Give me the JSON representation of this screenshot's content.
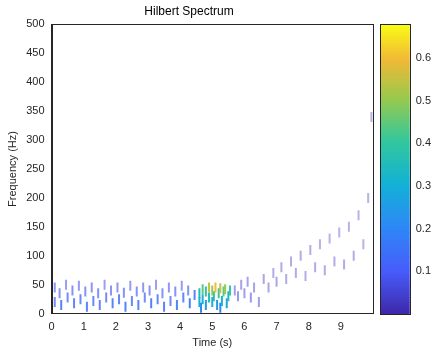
{
  "chart_data": {
    "type": "scatter",
    "title": "Hilbert Spectrum",
    "x_label": "Time (s)",
    "y_label": "Frequency (Hz)",
    "xlim": [
      0,
      10
    ],
    "xticks": [
      0,
      1,
      2,
      3,
      4,
      5,
      6,
      7,
      8,
      9
    ],
    "ylim": [
      0,
      500
    ],
    "yticks": [
      0,
      50,
      100,
      150,
      200,
      250,
      300,
      350,
      400,
      450,
      500
    ],
    "grid": false,
    "x": [
      0.1,
      0.1,
      0.25,
      0.3,
      0.45,
      0.5,
      0.65,
      0.7,
      0.85,
      0.9,
      1.05,
      1.1,
      1.25,
      1.3,
      1.45,
      1.5,
      1.65,
      1.7,
      1.85,
      1.9,
      2.05,
      2.1,
      2.25,
      2.3,
      2.45,
      2.5,
      2.65,
      2.7,
      2.85,
      2.9,
      3.05,
      3.1,
      3.25,
      3.3,
      3.45,
      3.5,
      3.65,
      3.7,
      3.85,
      3.9,
      4.05,
      4.1,
      4.25,
      4.3,
      4.45,
      5.7,
      5.8,
      5.9,
      6.0,
      6.1,
      6.2,
      6.3,
      6.45,
      6.6,
      6.75,
      6.9,
      7.0,
      7.15,
      7.3,
      7.45,
      7.6,
      7.75,
      7.9,
      8.05,
      8.2,
      8.35,
      8.5,
      8.65,
      8.8,
      8.95,
      9.1,
      9.25,
      9.4,
      9.55,
      9.7,
      9.85,
      9.95,
      4.65,
      5.25,
      4.8,
      5.15,
      5.45,
      4.6,
      4.7,
      5.0,
      5.3,
      4.6,
      4.9,
      5.05,
      5.5,
      4.8,
      5.2,
      5.35,
      5.55,
      4.7,
      5.0,
      5.4,
      4.9,
      5.25,
      5.1
    ],
    "y": [
      45,
      20,
      35,
      15,
      50,
      28,
      40,
      18,
      48,
      25,
      38,
      12,
      45,
      22,
      35,
      15,
      50,
      28,
      40,
      18,
      45,
      25,
      36,
      12,
      48,
      22,
      38,
      15,
      45,
      28,
      40,
      18,
      50,
      25,
      35,
      12,
      45,
      22,
      38,
      15,
      48,
      28,
      40,
      18,
      32,
      40,
      30,
      50,
      35,
      55,
      28,
      45,
      20,
      60,
      45,
      70,
      55,
      80,
      60,
      90,
      70,
      100,
      65,
      110,
      80,
      120,
      75,
      130,
      90,
      140,
      85,
      150,
      100,
      170,
      120,
      200,
      340,
      10,
      10,
      15,
      15,
      18,
      20,
      25,
      20,
      22,
      35,
      28,
      30,
      30,
      38,
      35,
      38,
      40,
      42,
      40,
      42,
      45,
      44,
      45
    ],
    "amplitude": [
      0.08,
      0.12,
      0.1,
      0.15,
      0.06,
      0.12,
      0.1,
      0.14,
      0.07,
      0.13,
      0.1,
      0.15,
      0.08,
      0.13,
      0.1,
      0.14,
      0.06,
      0.12,
      0.09,
      0.15,
      0.08,
      0.14,
      0.1,
      0.16,
      0.07,
      0.13,
      0.1,
      0.15,
      0.08,
      0.12,
      0.1,
      0.16,
      0.06,
      0.14,
      0.1,
      0.15,
      0.08,
      0.13,
      0.1,
      0.16,
      0.07,
      0.14,
      0.1,
      0.17,
      0.15,
      0.06,
      0.07,
      0.05,
      0.06,
      0.05,
      0.07,
      0.05,
      0.06,
      0.04,
      0.04,
      0.03,
      0.04,
      0.03,
      0.03,
      0.03,
      0.03,
      0.03,
      0.03,
      0.03,
      0.03,
      0.02,
      0.03,
      0.02,
      0.03,
      0.02,
      0.03,
      0.02,
      0.03,
      0.02,
      0.02,
      0.02,
      0.02,
      0.2,
      0.2,
      0.25,
      0.25,
      0.28,
      0.3,
      0.3,
      0.3,
      0.32,
      0.35,
      0.35,
      0.38,
      0.35,
      0.4,
      0.42,
      0.45,
      0.4,
      0.45,
      0.5,
      0.5,
      0.55,
      0.55,
      0.6
    ],
    "colorbar": {
      "lim": [
        0,
        0.68
      ],
      "ticks": [
        0.1,
        0.2,
        0.3,
        0.4,
        0.5,
        0.6
      ]
    }
  }
}
